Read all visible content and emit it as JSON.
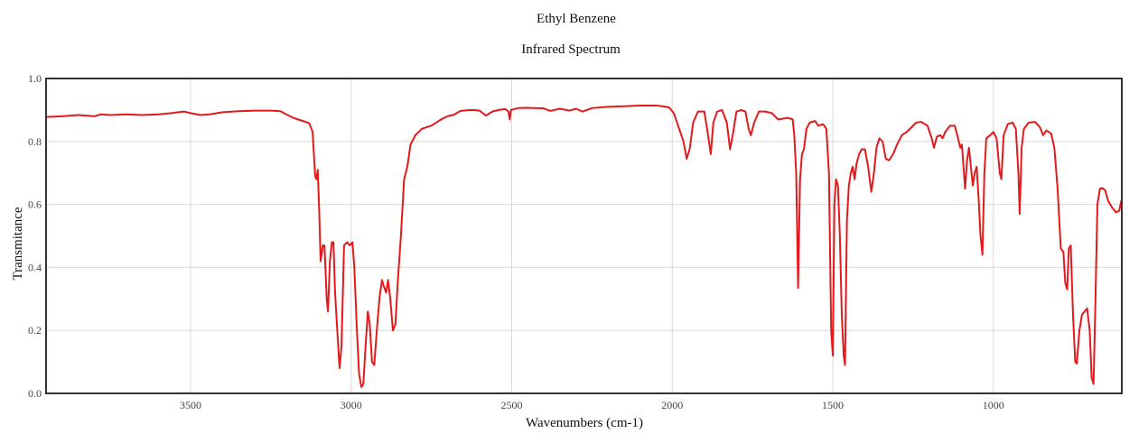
{
  "chart_data": {
    "type": "line",
    "title": "Ethyl Benzene",
    "subtitle": "Infrared Spectrum",
    "xlabel": "Wavenumbers (cm-1)",
    "ylabel": "Transmitance",
    "xlim": [
      3950,
      600
    ],
    "ylim": [
      0.0,
      1.0
    ],
    "x_reversed": true,
    "grid": true,
    "x_ticks": [
      "3500",
      "3000",
      "2500",
      "2000",
      "1500",
      "1000"
    ],
    "x_tick_values": [
      3500,
      3000,
      2500,
      2000,
      1500,
      1000
    ],
    "y_ticks": [
      "0.0",
      "0.2",
      "0.4",
      "0.6",
      "0.8",
      "1.0"
    ],
    "y_tick_values": [
      0.0,
      0.2,
      0.4,
      0.6,
      0.8,
      1.0
    ],
    "line_color": "#e31a1c",
    "series": [
      {
        "points": [
          [
            3950,
            0.878
          ],
          [
            3900,
            0.88
          ],
          [
            3850,
            0.884
          ],
          [
            3800,
            0.88
          ],
          [
            3780,
            0.886
          ],
          [
            3750,
            0.884
          ],
          [
            3700,
            0.886
          ],
          [
            3650,
            0.884
          ],
          [
            3600,
            0.886
          ],
          [
            3560,
            0.89
          ],
          [
            3520,
            0.895
          ],
          [
            3500,
            0.89
          ],
          [
            3470,
            0.884
          ],
          [
            3440,
            0.886
          ],
          [
            3400,
            0.893
          ],
          [
            3350,
            0.896
          ],
          [
            3300,
            0.898
          ],
          [
            3250,
            0.898
          ],
          [
            3220,
            0.896
          ],
          [
            3200,
            0.885
          ],
          [
            3180,
            0.875
          ],
          [
            3150,
            0.865
          ],
          [
            3130,
            0.858
          ],
          [
            3120,
            0.83
          ],
          [
            3112,
            0.69
          ],
          [
            3108,
            0.68
          ],
          [
            3104,
            0.71
          ],
          [
            3100,
            0.6
          ],
          [
            3095,
            0.42
          ],
          [
            3088,
            0.47
          ],
          [
            3083,
            0.47
          ],
          [
            3076,
            0.3
          ],
          [
            3072,
            0.26
          ],
          [
            3066,
            0.42
          ],
          [
            3060,
            0.48
          ],
          [
            3055,
            0.48
          ],
          [
            3050,
            0.32
          ],
          [
            3042,
            0.18
          ],
          [
            3036,
            0.08
          ],
          [
            3030,
            0.15
          ],
          [
            3022,
            0.47
          ],
          [
            3012,
            0.48
          ],
          [
            3004,
            0.47
          ],
          [
            2996,
            0.48
          ],
          [
            2990,
            0.4
          ],
          [
            2982,
            0.2
          ],
          [
            2975,
            0.06
          ],
          [
            2968,
            0.02
          ],
          [
            2962,
            0.03
          ],
          [
            2955,
            0.15
          ],
          [
            2948,
            0.26
          ],
          [
            2942,
            0.22
          ],
          [
            2935,
            0.1
          ],
          [
            2928,
            0.09
          ],
          [
            2920,
            0.2
          ],
          [
            2912,
            0.3
          ],
          [
            2904,
            0.36
          ],
          [
            2898,
            0.34
          ],
          [
            2891,
            0.32
          ],
          [
            2885,
            0.36
          ],
          [
            2878,
            0.3
          ],
          [
            2870,
            0.2
          ],
          [
            2862,
            0.22
          ],
          [
            2855,
            0.35
          ],
          [
            2845,
            0.5
          ],
          [
            2835,
            0.68
          ],
          [
            2825,
            0.72
          ],
          [
            2815,
            0.79
          ],
          [
            2800,
            0.82
          ],
          [
            2780,
            0.84
          ],
          [
            2750,
            0.85
          ],
          [
            2720,
            0.87
          ],
          [
            2700,
            0.88
          ],
          [
            2680,
            0.885
          ],
          [
            2660,
            0.897
          ],
          [
            2640,
            0.899
          ],
          [
            2620,
            0.9
          ],
          [
            2600,
            0.898
          ],
          [
            2580,
            0.882
          ],
          [
            2560,
            0.895
          ],
          [
            2540,
            0.9
          ],
          [
            2520,
            0.903
          ],
          [
            2510,
            0.895
          ],
          [
            2506,
            0.87
          ],
          [
            2502,
            0.9
          ],
          [
            2480,
            0.906
          ],
          [
            2450,
            0.907
          ],
          [
            2400,
            0.905
          ],
          [
            2380,
            0.897
          ],
          [
            2350,
            0.904
          ],
          [
            2320,
            0.898
          ],
          [
            2300,
            0.904
          ],
          [
            2280,
            0.895
          ],
          [
            2250,
            0.906
          ],
          [
            2200,
            0.91
          ],
          [
            2150,
            0.912
          ],
          [
            2100,
            0.914
          ],
          [
            2050,
            0.914
          ],
          [
            2030,
            0.912
          ],
          [
            2010,
            0.908
          ],
          [
            1995,
            0.89
          ],
          [
            1985,
            0.86
          ],
          [
            1975,
            0.83
          ],
          [
            1965,
            0.8
          ],
          [
            1955,
            0.745
          ],
          [
            1945,
            0.78
          ],
          [
            1935,
            0.86
          ],
          [
            1920,
            0.895
          ],
          [
            1900,
            0.895
          ],
          [
            1890,
            0.83
          ],
          [
            1880,
            0.76
          ],
          [
            1872,
            0.86
          ],
          [
            1860,
            0.895
          ],
          [
            1845,
            0.9
          ],
          [
            1830,
            0.86
          ],
          [
            1820,
            0.775
          ],
          [
            1810,
            0.83
          ],
          [
            1800,
            0.895
          ],
          [
            1785,
            0.9
          ],
          [
            1772,
            0.895
          ],
          [
            1762,
            0.84
          ],
          [
            1755,
            0.82
          ],
          [
            1745,
            0.86
          ],
          [
            1730,
            0.895
          ],
          [
            1710,
            0.895
          ],
          [
            1690,
            0.89
          ],
          [
            1670,
            0.87
          ],
          [
            1640,
            0.875
          ],
          [
            1625,
            0.87
          ],
          [
            1620,
            0.82
          ],
          [
            1614,
            0.7
          ],
          [
            1608,
            0.335
          ],
          [
            1602,
            0.68
          ],
          [
            1596,
            0.76
          ],
          [
            1590,
            0.775
          ],
          [
            1582,
            0.84
          ],
          [
            1572,
            0.86
          ],
          [
            1555,
            0.865
          ],
          [
            1545,
            0.85
          ],
          [
            1530,
            0.855
          ],
          [
            1520,
            0.84
          ],
          [
            1512,
            0.7
          ],
          [
            1505,
            0.2
          ],
          [
            1500,
            0.12
          ],
          [
            1495,
            0.6
          ],
          [
            1490,
            0.68
          ],
          [
            1484,
            0.66
          ],
          [
            1478,
            0.5
          ],
          [
            1472,
            0.25
          ],
          [
            1466,
            0.12
          ],
          [
            1462,
            0.09
          ],
          [
            1456,
            0.55
          ],
          [
            1450,
            0.66
          ],
          [
            1444,
            0.7
          ],
          [
            1438,
            0.72
          ],
          [
            1432,
            0.68
          ],
          [
            1426,
            0.73
          ],
          [
            1418,
            0.76
          ],
          [
            1410,
            0.775
          ],
          [
            1400,
            0.775
          ],
          [
            1390,
            0.72
          ],
          [
            1380,
            0.64
          ],
          [
            1372,
            0.7
          ],
          [
            1364,
            0.78
          ],
          [
            1355,
            0.81
          ],
          [
            1345,
            0.8
          ],
          [
            1335,
            0.745
          ],
          [
            1325,
            0.74
          ],
          [
            1312,
            0.76
          ],
          [
            1300,
            0.79
          ],
          [
            1285,
            0.82
          ],
          [
            1270,
            0.83
          ],
          [
            1255,
            0.845
          ],
          [
            1240,
            0.86
          ],
          [
            1225,
            0.862
          ],
          [
            1205,
            0.85
          ],
          [
            1192,
            0.81
          ],
          [
            1185,
            0.78
          ],
          [
            1176,
            0.815
          ],
          [
            1165,
            0.82
          ],
          [
            1158,
            0.81
          ],
          [
            1150,
            0.83
          ],
          [
            1135,
            0.85
          ],
          [
            1120,
            0.85
          ],
          [
            1110,
            0.81
          ],
          [
            1103,
            0.78
          ],
          [
            1098,
            0.79
          ],
          [
            1093,
            0.72
          ],
          [
            1088,
            0.65
          ],
          [
            1082,
            0.74
          ],
          [
            1076,
            0.78
          ],
          [
            1070,
            0.72
          ],
          [
            1064,
            0.66
          ],
          [
            1058,
            0.7
          ],
          [
            1052,
            0.72
          ],
          [
            1046,
            0.62
          ],
          [
            1040,
            0.5
          ],
          [
            1034,
            0.44
          ],
          [
            1028,
            0.7
          ],
          [
            1022,
            0.81
          ],
          [
            1010,
            0.82
          ],
          [
            1000,
            0.83
          ],
          [
            990,
            0.81
          ],
          [
            980,
            0.7
          ],
          [
            975,
            0.68
          ],
          [
            968,
            0.82
          ],
          [
            955,
            0.855
          ],
          [
            940,
            0.86
          ],
          [
            930,
            0.84
          ],
          [
            922,
            0.7
          ],
          [
            918,
            0.57
          ],
          [
            912,
            0.78
          ],
          [
            905,
            0.84
          ],
          [
            890,
            0.86
          ],
          [
            870,
            0.862
          ],
          [
            855,
            0.845
          ],
          [
            845,
            0.82
          ],
          [
            835,
            0.835
          ],
          [
            820,
            0.825
          ],
          [
            810,
            0.78
          ],
          [
            800,
            0.65
          ],
          [
            790,
            0.46
          ],
          [
            782,
            0.45
          ],
          [
            776,
            0.35
          ],
          [
            770,
            0.33
          ],
          [
            765,
            0.46
          ],
          [
            759,
            0.47
          ],
          [
            752,
            0.25
          ],
          [
            745,
            0.1
          ],
          [
            740,
            0.095
          ],
          [
            732,
            0.2
          ],
          [
            724,
            0.25
          ],
          [
            716,
            0.26
          ],
          [
            708,
            0.27
          ],
          [
            700,
            0.2
          ],
          [
            694,
            0.05
          ],
          [
            688,
            0.03
          ],
          [
            682,
            0.3
          ],
          [
            676,
            0.6
          ],
          [
            668,
            0.65
          ],
          [
            660,
            0.652
          ],
          [
            652,
            0.645
          ],
          [
            642,
            0.61
          ],
          [
            630,
            0.59
          ],
          [
            618,
            0.575
          ],
          [
            608,
            0.58
          ],
          [
            602,
            0.61
          ],
          [
            600,
            0.615
          ]
        ]
      }
    ]
  }
}
